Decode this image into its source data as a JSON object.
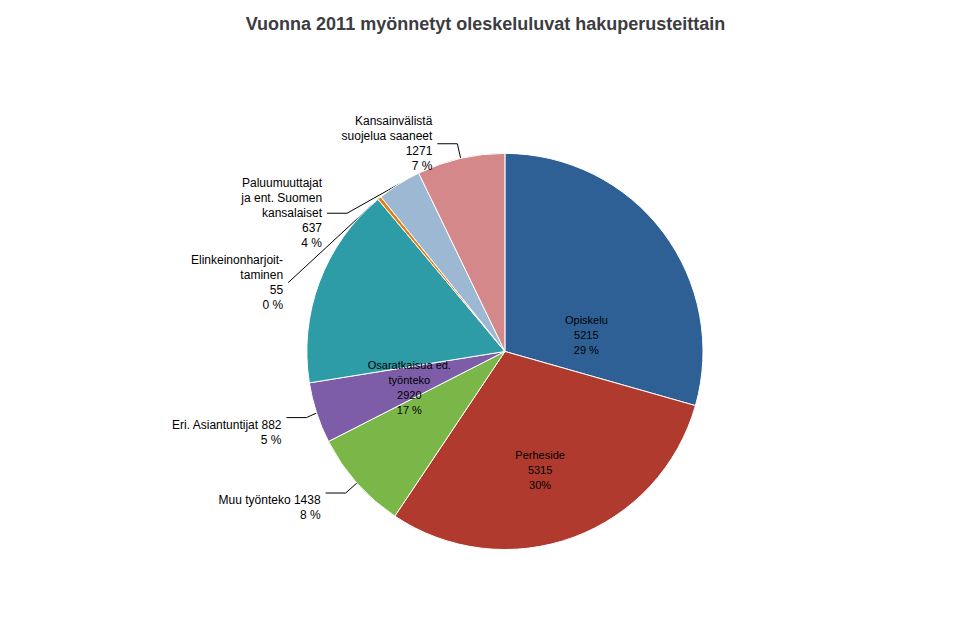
{
  "chart_data": {
    "type": "pie",
    "title": "Vuonna 2011 myönnetyt oleskeluluvat hakuperusteittain",
    "categories": [
      "Opiskelu\n5215\n29 %",
      "Perheside\n5315\n30%",
      "Muu työnteko 1438\n8 %",
      "Eri. Asiantuntijat 882\n5 %",
      "Osaratkaisua ed.\ntyönteko\n2920\n17 %",
      "Elinkeinonharjoit-\ntaminen\n55\n0 %",
      "Paluumuuttajat\nja ent. Suomen\nkansalaiset\n637\n4 %",
      "Kansainvälistä\nsuojelua saaneet\n1271\n7 %"
    ],
    "values": [
      5215,
      5315,
      1438,
      882,
      2920,
      55,
      637,
      1271
    ],
    "colors": [
      "#2E6096",
      "#B03A2E",
      "#7AB648",
      "#7D5DA7",
      "#2E9CA6",
      "#E08010",
      "#9DB8D2",
      "#D4888A"
    ]
  }
}
